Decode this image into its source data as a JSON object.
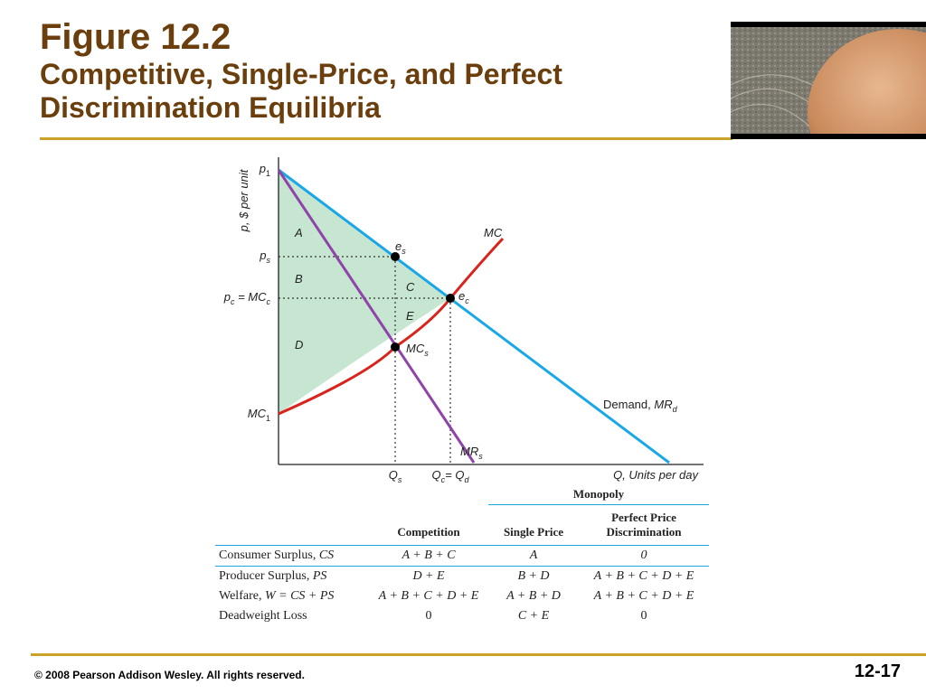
{
  "slide": {
    "figure_number": "Figure 12.2",
    "title_line1": "Competitive, Single-Price, and Perfect",
    "title_line2": "Discrimination Equilibria",
    "copyright": "© 2008 Pearson Addison Wesley. All rights reserved.",
    "page_number": "12-17"
  },
  "diagram": {
    "y_axis_label": "p, $ per unit",
    "x_axis_label": "Q, Units per day",
    "y_ticks": {
      "p1": "p",
      "p1_sub": "1",
      "ps": "p",
      "ps_sub": "s",
      "pc_main": "p",
      "pc_sub": "c",
      "pc_mid": " = MC",
      "pc_sub2": "c",
      "mc1": "MC",
      "mc1_sub": "1"
    },
    "x_ticks": {
      "qs": "Q",
      "qs_sub": "s",
      "qc": "Q",
      "qc_sub": "c",
      "qc_mid": "= Q",
      "qc_sub2": "d"
    },
    "areas": {
      "a": "A",
      "b": "B",
      "c": "C",
      "d": "D",
      "e": "E"
    },
    "points": {
      "es": "e",
      "es_sub": "s",
      "ec": "e",
      "ec_sub": "c",
      "mcs": "MC",
      "mcs_sub": "s"
    },
    "curves": {
      "mc": "MC",
      "demand_prefix": "Demand, ",
      "demand_main": "MR",
      "demand_sub": "d",
      "mr_main": "MR",
      "mr_sub": "s"
    },
    "colors": {
      "demand": "#1aa7e8",
      "mr": "#8e44a8",
      "mc": "#d9231b",
      "fill": "#c7e6d2"
    }
  },
  "table": {
    "monopoly_header": "Monopoly",
    "headers": {
      "competition": "Competition",
      "single_price": "Single Price",
      "perfect_line1": "Perfect Price",
      "perfect_line2": "Discrimination"
    },
    "rows": [
      {
        "label": "Consumer Surplus, ",
        "label_italic": "CS",
        "competition": "A + B + C",
        "single_price": "A",
        "perfect": "0"
      },
      {
        "label": "Producer Surplus, ",
        "label_italic": "PS",
        "competition": "D + E",
        "single_price": "B + D",
        "perfect": "A + B + C + D + E"
      },
      {
        "label": "Welfare, ",
        "label_italic": "W = CS + PS",
        "competition": "A + B + C + D + E",
        "single_price": "A + B + D",
        "perfect": "A + B + C + D + E"
      },
      {
        "label": "Deadweight Loss",
        "label_italic": "",
        "competition": "0",
        "single_price": "C + E",
        "perfect": "0"
      }
    ]
  }
}
